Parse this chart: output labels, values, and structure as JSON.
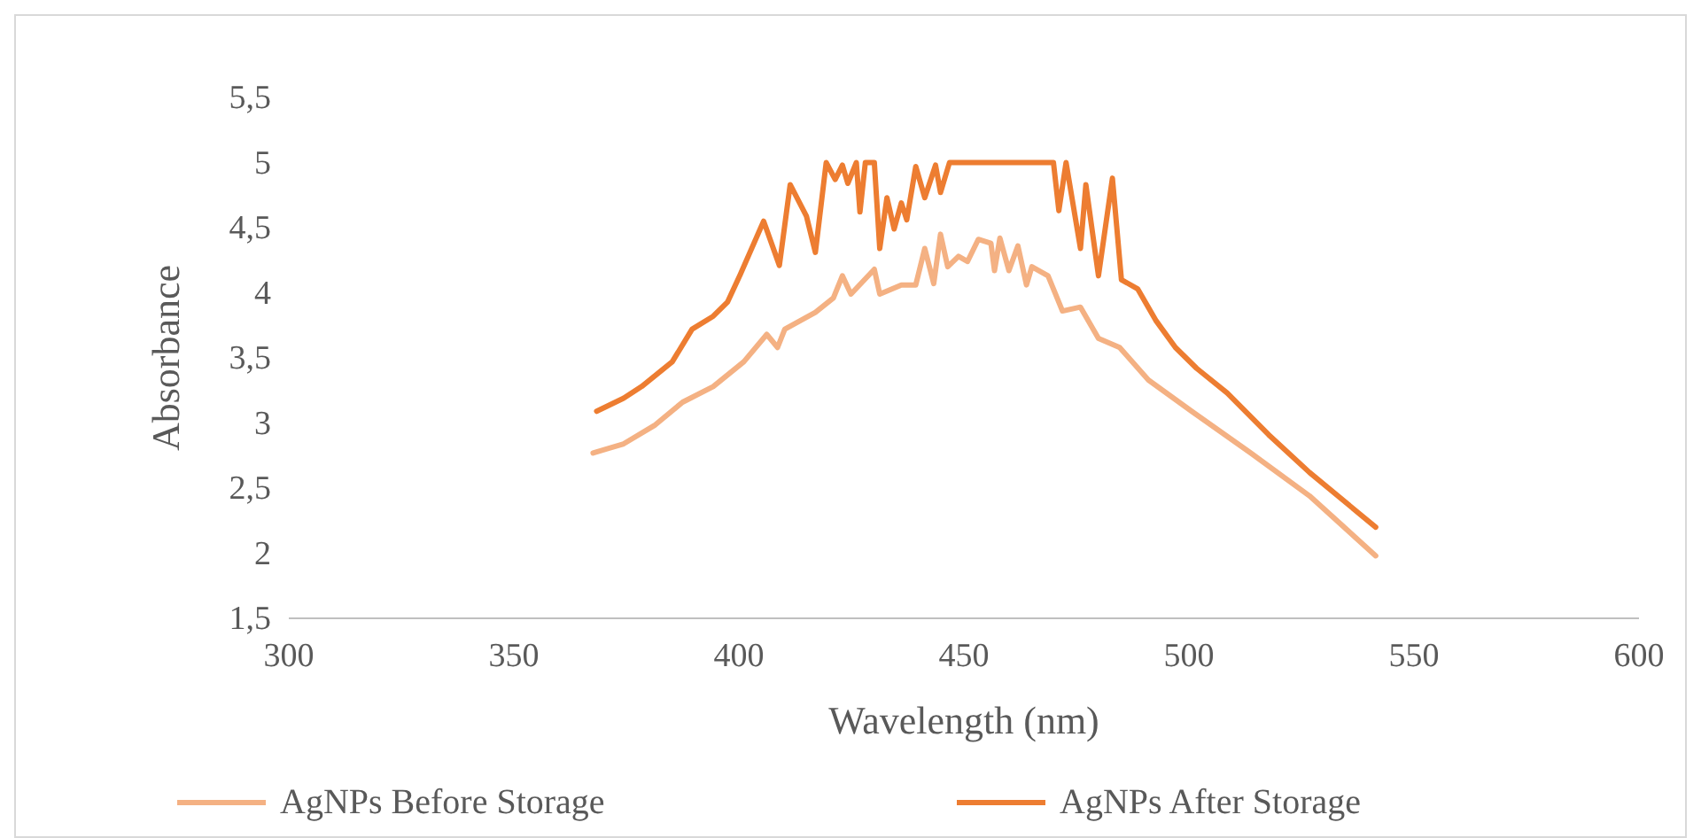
{
  "chart_data": {
    "type": "line",
    "xlabel": "Wavelength (nm)",
    "ylabel": "Absorbance",
    "xlim": [
      300,
      600
    ],
    "xticks": [
      300,
      350,
      400,
      450,
      500,
      550,
      600
    ],
    "ylim": [
      1.5,
      5.5
    ],
    "yticks": [
      {
        "value": 1.5,
        "label": "1,5"
      },
      2,
      {
        "value": 2.5,
        "label": "2,5"
      },
      3,
      {
        "value": 3.5,
        "label": "3,5"
      },
      4,
      {
        "value": 4.5,
        "label": "4,5"
      },
      5,
      {
        "value": 5.5,
        "label": "5,5"
      }
    ],
    "grid": false,
    "legend": "bottom",
    "marker": "none",
    "line_style": "solid",
    "series": [
      {
        "name": "AgNPs Before Storage",
        "color": "#f4b183",
        "x": [
          367.6,
          374.4,
          381.2,
          387.5,
          394.3,
          401.1,
          406.2,
          408.6,
          410.2,
          417,
          421,
          423,
          424.9,
          430.1,
          431.3,
          436.1,
          439.3,
          441.3,
          443.3,
          444.8,
          446.4,
          448.8,
          450.8,
          453.2,
          456,
          456.8,
          458,
          460,
          462,
          463.9,
          465.1,
          468.7,
          471.9,
          475.9,
          479.9,
          484.6,
          491,
          500.6,
          513.7,
          526.8,
          541.5
        ],
        "values": [
          2.77,
          2.84,
          2.98,
          3.16,
          3.28,
          3.47,
          3.68,
          3.58,
          3.72,
          3.85,
          3.96,
          4.13,
          3.99,
          4.18,
          3.99,
          4.06,
          4.06,
          4.34,
          4.07,
          4.45,
          4.2,
          4.28,
          4.24,
          4.41,
          4.38,
          4.17,
          4.42,
          4.17,
          4.36,
          4.06,
          4.2,
          4.13,
          3.86,
          3.89,
          3.65,
          3.58,
          3.33,
          3.09,
          2.77,
          2.44,
          1.98
        ]
      },
      {
        "name": "AgNPs After Storage",
        "color": "#ed7d31",
        "x": [
          368.4,
          374.4,
          378.4,
          385.2,
          389.6,
          394.3,
          397.5,
          400.3,
          405.5,
          409,
          411.4,
          415,
          417,
          419.4,
          421.4,
          423,
          424.2,
          426.1,
          426.9,
          428.1,
          430.1,
          431.3,
          432.9,
          434.5,
          436.1,
          437.3,
          439.3,
          441.3,
          443.7,
          444.8,
          446.8,
          469.9,
          471.1,
          472.7,
          475.9,
          477.1,
          479.9,
          483,
          485,
          488.6,
          492.6,
          497,
          501.7,
          508.5,
          517.7,
          526.8,
          541.5
        ],
        "values": [
          3.09,
          3.19,
          3.28,
          3.47,
          3.72,
          3.82,
          3.93,
          4.14,
          4.55,
          4.21,
          4.83,
          4.59,
          4.31,
          5,
          4.87,
          4.98,
          4.84,
          5,
          4.62,
          5,
          5,
          4.34,
          4.73,
          4.49,
          4.69,
          4.56,
          4.97,
          4.73,
          4.98,
          4.77,
          5,
          5,
          4.63,
          5,
          4.34,
          4.83,
          4.13,
          4.88,
          4.1,
          4.03,
          3.79,
          3.58,
          3.42,
          3.23,
          2.91,
          2.62,
          2.2
        ]
      }
    ]
  }
}
